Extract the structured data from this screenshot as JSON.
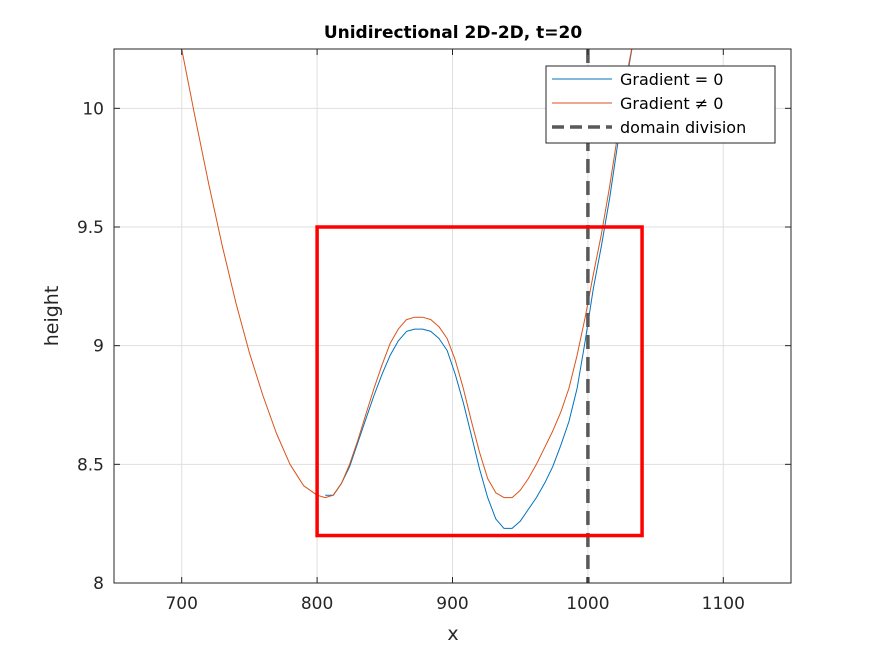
{
  "chart_data": {
    "type": "line",
    "title": "Unidirectional 2D-2D, t=20",
    "xlabel": "x",
    "ylabel": "height",
    "xlim": [
      650,
      1150
    ],
    "ylim": [
      8,
      10.25
    ],
    "xticks": [
      700,
      800,
      900,
      1000,
      1100
    ],
    "xtick_labels": [
      "700",
      "800",
      "900",
      "1000",
      "1100"
    ],
    "yticks": [
      8,
      8.5,
      9,
      9.5,
      10
    ],
    "ytick_labels": [
      "8",
      "8.5",
      "9",
      "9.5",
      "10"
    ],
    "grid": true,
    "legend_position": "top-right",
    "series": [
      {
        "name": "Gradient = 0",
        "color": "#0072BD",
        "style": "solid",
        "points": [
          [
            806,
            8.37
          ],
          [
            812,
            8.37
          ],
          [
            818,
            8.42
          ],
          [
            824,
            8.49
          ],
          [
            830,
            8.59
          ],
          [
            836,
            8.69
          ],
          [
            842,
            8.79
          ],
          [
            848,
            8.88
          ],
          [
            854,
            8.96
          ],
          [
            860,
            9.02
          ],
          [
            866,
            9.06
          ],
          [
            872,
            9.07
          ],
          [
            878,
            9.07
          ],
          [
            884,
            9.06
          ],
          [
            890,
            9.03
          ],
          [
            896,
            8.98
          ],
          [
            902,
            8.88
          ],
          [
            908,
            8.76
          ],
          [
            914,
            8.62
          ],
          [
            920,
            8.48
          ],
          [
            926,
            8.36
          ],
          [
            932,
            8.27
          ],
          [
            938,
            8.23
          ],
          [
            944,
            8.23
          ],
          [
            950,
            8.26
          ],
          [
            956,
            8.31
          ],
          [
            962,
            8.36
          ],
          [
            968,
            8.42
          ],
          [
            974,
            8.49
          ],
          [
            980,
            8.58
          ],
          [
            986,
            8.68
          ],
          [
            992,
            8.82
          ],
          [
            998,
            9.02
          ],
          [
            1004,
            9.24
          ],
          [
            1010,
            9.42
          ],
          [
            1016,
            9.62
          ],
          [
            1022,
            9.85
          ],
          [
            1028,
            10.1
          ],
          [
            1034,
            10.3
          ]
        ]
      },
      {
        "name": "Gradient ≠ 0",
        "color": "#D95319",
        "style": "solid",
        "points": [
          [
            700,
            10.25
          ],
          [
            710,
            9.96
          ],
          [
            720,
            9.68
          ],
          [
            730,
            9.42
          ],
          [
            740,
            9.18
          ],
          [
            750,
            8.97
          ],
          [
            760,
            8.79
          ],
          [
            770,
            8.63
          ],
          [
            780,
            8.5
          ],
          [
            790,
            8.41
          ],
          [
            800,
            8.37
          ],
          [
            806,
            8.36
          ],
          [
            812,
            8.37
          ],
          [
            818,
            8.42
          ],
          [
            824,
            8.5
          ],
          [
            830,
            8.6
          ],
          [
            836,
            8.71
          ],
          [
            842,
            8.82
          ],
          [
            848,
            8.92
          ],
          [
            854,
            9.01
          ],
          [
            860,
            9.07
          ],
          [
            866,
            9.11
          ],
          [
            872,
            9.12
          ],
          [
            878,
            9.12
          ],
          [
            884,
            9.11
          ],
          [
            890,
            9.08
          ],
          [
            896,
            9.03
          ],
          [
            902,
            8.94
          ],
          [
            908,
            8.82
          ],
          [
            914,
            8.68
          ],
          [
            920,
            8.55
          ],
          [
            926,
            8.44
          ],
          [
            932,
            8.38
          ],
          [
            938,
            8.36
          ],
          [
            944,
            8.36
          ],
          [
            950,
            8.39
          ],
          [
            956,
            8.44
          ],
          [
            962,
            8.5
          ],
          [
            968,
            8.57
          ],
          [
            974,
            8.64
          ],
          [
            980,
            8.72
          ],
          [
            986,
            8.82
          ],
          [
            992,
            8.96
          ],
          [
            998,
            9.12
          ],
          [
            1004,
            9.3
          ],
          [
            1010,
            9.47
          ],
          [
            1016,
            9.67
          ],
          [
            1022,
            9.89
          ],
          [
            1028,
            10.12
          ],
          [
            1034,
            10.3
          ]
        ]
      },
      {
        "name": "domain division",
        "color": "#595959",
        "style": "dashed",
        "x": 1000
      }
    ],
    "annotations": [
      {
        "type": "rectangle",
        "color": "#FF0000",
        "x0": 800,
        "x1": 1040,
        "y0": 8.2,
        "y1": 9.5
      }
    ]
  }
}
